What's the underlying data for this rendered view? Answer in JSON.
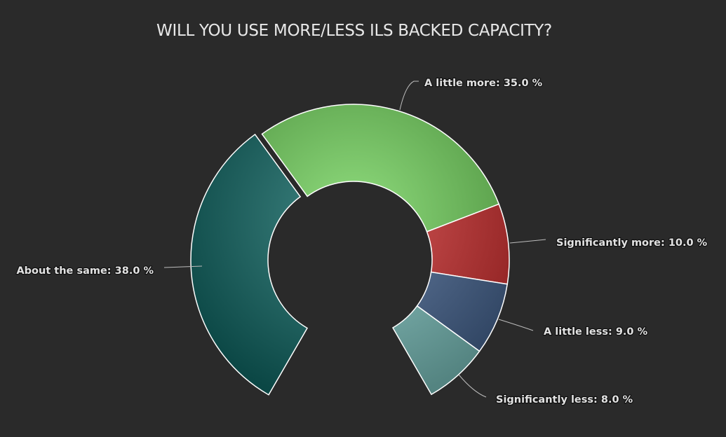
{
  "chart_data": {
    "type": "pie",
    "variant": "donut",
    "title": "WILL YOU USE MORE/LESS ILS BACKED CAPACITY?",
    "unit": "%",
    "slices": [
      {
        "name": "About the same",
        "value": 38.0,
        "label": "About the same: 38.0 %",
        "color": "#0f6663",
        "sliced": true
      },
      {
        "name": "A little more",
        "value": 35.0,
        "label": "A little more: 35.0 %",
        "color": "#74d55e"
      },
      {
        "name": "Significantly more",
        "value": 10.0,
        "label": "Significantly more: 10.0 %",
        "color": "#cc2f2f"
      },
      {
        "name": "A little less",
        "value": 9.0,
        "label": "A little less: 9.0 %",
        "color": "#44628e"
      },
      {
        "name": "Significantly less",
        "value": 8.0,
        "label": "Significantly less: 8.0 %",
        "color": "#78bcb8"
      }
    ],
    "start_angle": -150,
    "end_angle": 150,
    "legend": "none",
    "background": "#2a2a2a"
  }
}
